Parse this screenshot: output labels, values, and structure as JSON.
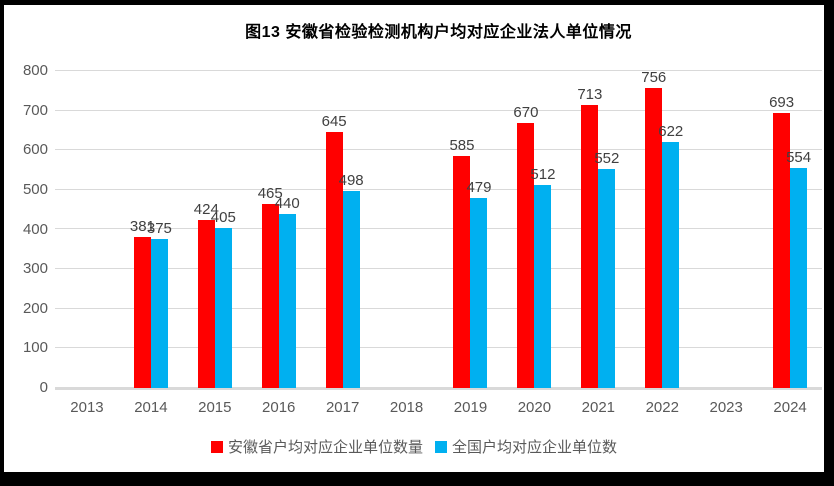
{
  "chart_data": {
    "type": "bar",
    "title": "图13 安徽省检验检测机构户均对应企业法人单位情况",
    "categories": [
      "2013",
      "2014",
      "2015",
      "2016",
      "2017",
      "2018",
      "2019",
      "2020",
      "2021",
      "2022",
      "2023",
      "2024"
    ],
    "series": [
      {
        "key": "anhui",
        "name": "安徽省户均对应企业单位数量",
        "color": "#FF0000",
        "values": [
          null,
          381,
          424,
          465,
          645,
          null,
          585,
          670,
          713,
          756,
          null,
          693
        ]
      },
      {
        "key": "national",
        "name": "全国户均对应企业单位数",
        "color": "#00B0F0",
        "values": [
          null,
          375,
          405,
          440,
          498,
          null,
          479,
          512,
          552,
          622,
          null,
          554
        ]
      }
    ],
    "ylim": [
      0,
      800
    ],
    "yticks": [
      0,
      100,
      200,
      300,
      400,
      500,
      600,
      700,
      800
    ],
    "grid": "horizontal",
    "legend_position": "bottom"
  },
  "colors": {
    "gridline": "#D9D9D9",
    "axis_text": "#595959",
    "data_label": "#404040",
    "title": "#000000",
    "frame": "#000000",
    "background": "#FFFFFF"
  }
}
